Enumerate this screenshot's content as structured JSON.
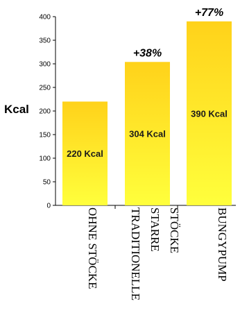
{
  "chart_data": {
    "type": "bar",
    "ylabel": "Kcal",
    "ylim": [
      0,
      400
    ],
    "yticks": [
      0,
      50,
      100,
      150,
      200,
      250,
      300,
      350,
      400
    ],
    "categories": [
      [
        "OHNE STÖCKE"
      ],
      [
        "TRADITIONELLE",
        "STARRE",
        "STÖCKE"
      ],
      [
        "BUNGYPUMP"
      ]
    ],
    "values": [
      220,
      304,
      390
    ],
    "data_labels": [
      "220 Kcal",
      "304 Kcal",
      "390 Kcal"
    ],
    "annotations": [
      "",
      "+38%",
      "+77%"
    ],
    "colors": {
      "bar_top": "#ffd21a",
      "bar_bottom": "#ffff3c"
    }
  }
}
